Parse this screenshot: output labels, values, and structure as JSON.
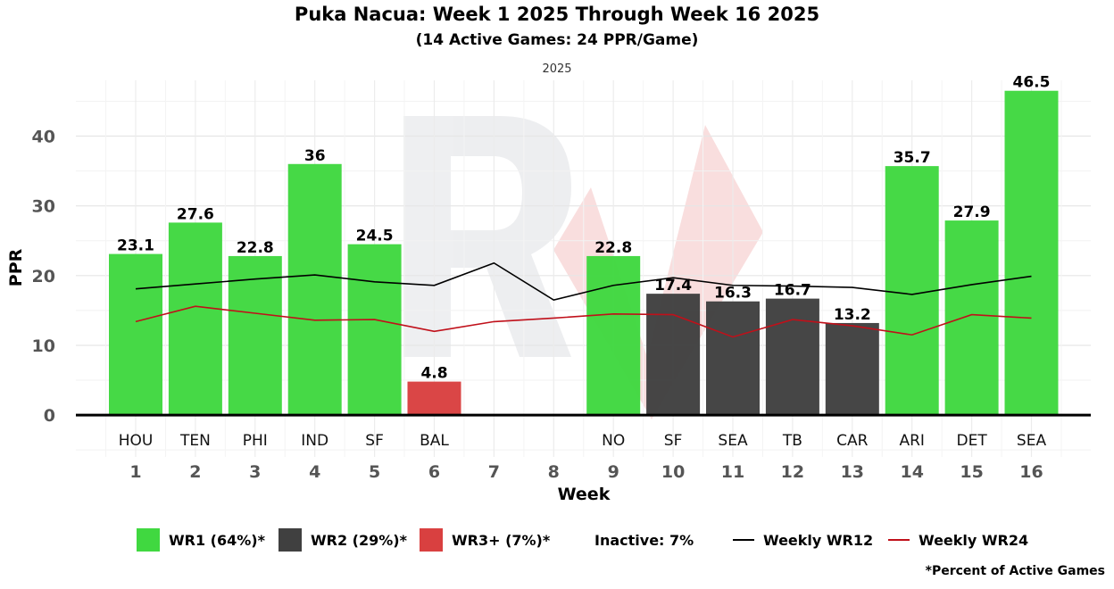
{
  "header": {
    "title": "Puka Nacua: Week 1 2025 Through Week 16 2025",
    "subtitle": "(14 Active Games: 24 PPR/Game)",
    "season": "2025"
  },
  "chart_data": {
    "type": "bar",
    "title": "Puka Nacua: Week 1 2025 Through Week 16 2025",
    "subtitle": "(14 Active Games: 24 PPR/Game)",
    "facet_label": "2025",
    "xlabel": "Week",
    "ylabel": "PPR",
    "ylim": [
      -6,
      48
    ],
    "yticks": [
      0,
      10,
      20,
      30,
      40
    ],
    "grid": true,
    "x": [
      1,
      2,
      3,
      4,
      5,
      6,
      7,
      8,
      9,
      10,
      11,
      12,
      13,
      14,
      15,
      16
    ],
    "opponents": [
      "HOU",
      "TEN",
      "PHI",
      "IND",
      "SF",
      "BAL",
      "",
      "",
      "NO",
      "SF",
      "SEA",
      "TB",
      "CAR",
      "ARI",
      "DET",
      "SEA"
    ],
    "values": [
      23.1,
      27.6,
      22.8,
      36,
      24.5,
      4.8,
      null,
      null,
      22.8,
      17.4,
      16.3,
      16.7,
      13.2,
      35.7,
      27.9,
      46.5
    ],
    "tiers": [
      "WR1",
      "WR1",
      "WR1",
      "WR1",
      "WR1",
      "WR3+",
      null,
      null,
      "WR1",
      "WR2",
      "WR2",
      "WR2",
      "WR2",
      "WR1",
      "WR1",
      "WR1"
    ],
    "tier_colors": {
      "WR1": "#40d840",
      "WR2": "#404040",
      "WR3+": "#d94040"
    },
    "lines": [
      {
        "name": "Weekly WR12",
        "color": "#000000",
        "values": [
          18.1,
          18.8,
          19.5,
          20.1,
          19.1,
          18.6,
          21.8,
          16.5,
          18.6,
          19.7,
          18.6,
          18.5,
          18.3,
          17.3,
          18.7,
          19.9
        ]
      },
      {
        "name": "Weekly WR24",
        "color": "#c0101a",
        "values": [
          13.4,
          15.6,
          14.6,
          13.6,
          13.7,
          12.0,
          13.4,
          13.9,
          14.5,
          14.4,
          11.2,
          13.7,
          12.8,
          11.5,
          14.4,
          13.9
        ]
      }
    ],
    "legend": {
      "position": "bottom",
      "items": [
        {
          "label": "WR1 (64%)*",
          "kind": "box",
          "color": "#40d840"
        },
        {
          "label": "WR2 (29%)*",
          "kind": "box",
          "color": "#404040"
        },
        {
          "label": "WR3+ (7%)*",
          "kind": "box",
          "color": "#d94040"
        },
        {
          "label": "Inactive: 7%",
          "kind": "text"
        },
        {
          "label": "Weekly WR12",
          "kind": "line",
          "color": "#000000"
        },
        {
          "label": "Weekly WR24",
          "kind": "line",
          "color": "#c0101a"
        }
      ]
    },
    "footnote": "*Percent of Active Games"
  }
}
